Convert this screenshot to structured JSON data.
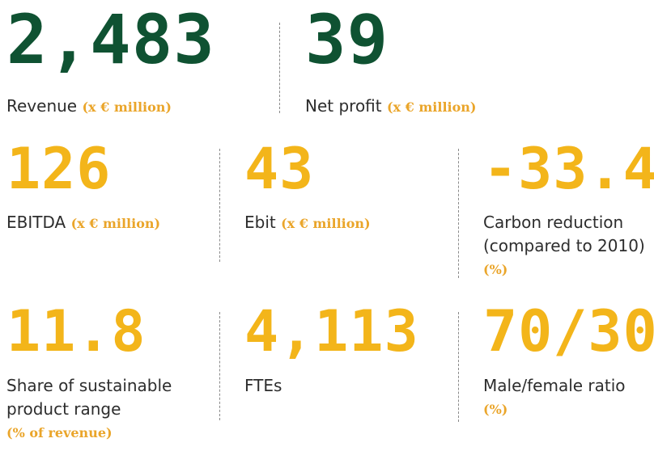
{
  "colors": {
    "primary_green": "#0f5232",
    "accent_yellow": "#f3b51a",
    "unit_orange": "#eaa52a",
    "label_text": "#2d2d2d"
  },
  "kpis": {
    "revenue": {
      "value": "2,483",
      "label": "Revenue",
      "unit": "(x € million)"
    },
    "net_profit": {
      "value": "39",
      "label": "Net profit",
      "unit": "(x € million)"
    },
    "ebitda": {
      "value": "126",
      "label": "EBITDA",
      "unit": "(x € million)"
    },
    "ebit": {
      "value": "43",
      "label": "Ebit",
      "unit": "(x € million)"
    },
    "carbon": {
      "value": "-33.4",
      "label_line1": "Carbon reduction",
      "label_line2": "(compared to 2010)",
      "unit": "(%)"
    },
    "sustainable": {
      "value": "11.8",
      "label_line1": "Share of sustainable",
      "label_line2": "product range",
      "unit": "(% of revenue)"
    },
    "ftes": {
      "value": "4,113",
      "label": "FTEs"
    },
    "gender_ratio": {
      "value": "70/30",
      "label": "Male/female ratio",
      "unit": "(%)"
    }
  }
}
